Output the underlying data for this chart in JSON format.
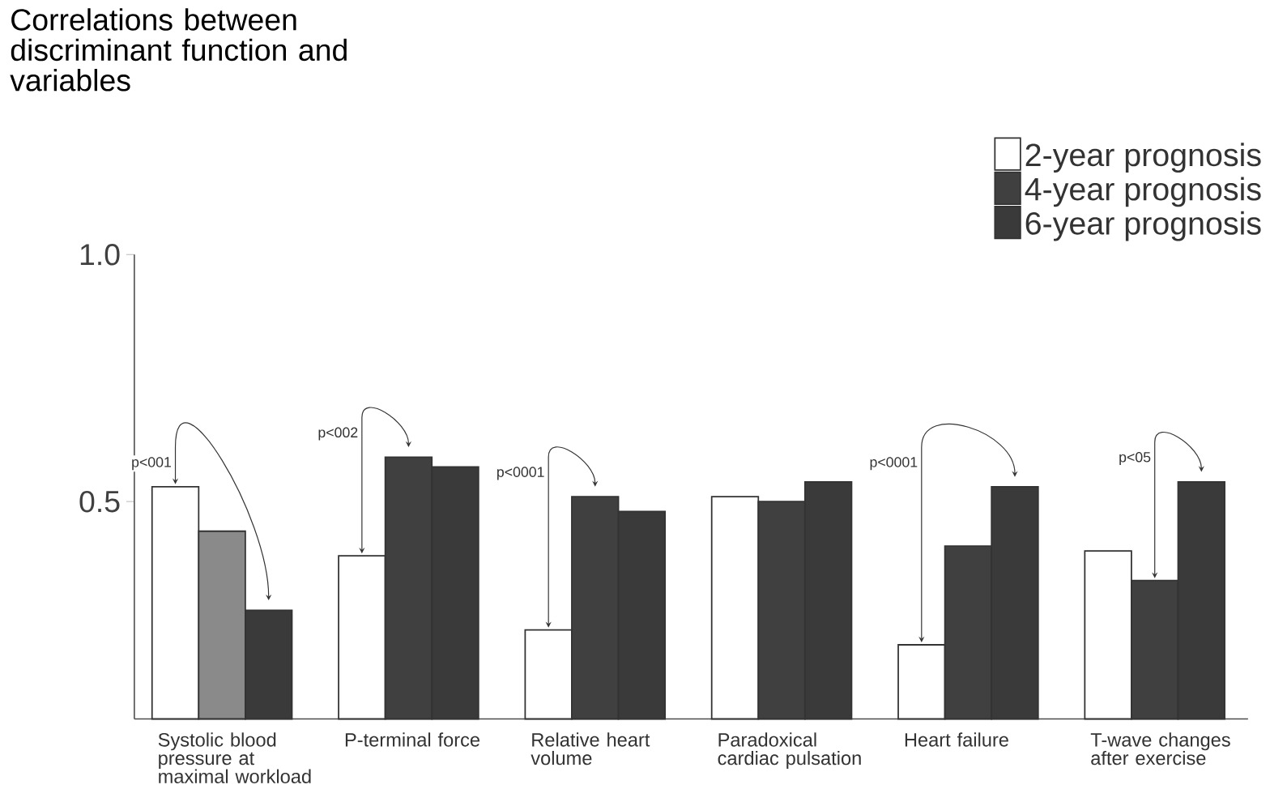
{
  "chart_data": {
    "type": "bar",
    "title": "Correlations between discriminant function and variables",
    "categories": [
      "Systolic blood pressure at maximal workload",
      "P-terminal force",
      "Relative heart volume",
      "Paradoxical cardiac pulsation",
      "Heart failure",
      "T-wave changes after exercise"
    ],
    "series": [
      {
        "name": "2-year prognosis",
        "color": "#ffffff",
        "values": [
          0.53,
          0.39,
          0.24,
          0.51,
          0.21,
          0.4
        ]
      },
      {
        "name": "4-year prognosis",
        "color": "#404040",
        "colors": [
          "#8a8a8a",
          "#404040",
          "#404040",
          "#404040",
          "#404040",
          "#404040"
        ],
        "values": [
          0.44,
          0.59,
          0.51,
          0.5,
          0.41,
          0.34
        ]
      },
      {
        "name": "6-year prognosis",
        "color": "#3a3a3a",
        "values": [
          0.28,
          0.57,
          0.48,
          0.54,
          0.53,
          0.54
        ]
      }
    ],
    "ylim": [
      0.06,
      1.0
    ],
    "yticks": [
      0.5,
      {
        "value": 1.0,
        "label": "1.0"
      }
    ],
    "legend": "top right",
    "grid": false,
    "annotations": [
      "p<001",
      "p<002",
      "p<0001",
      "p<0001",
      "p<05"
    ]
  }
}
